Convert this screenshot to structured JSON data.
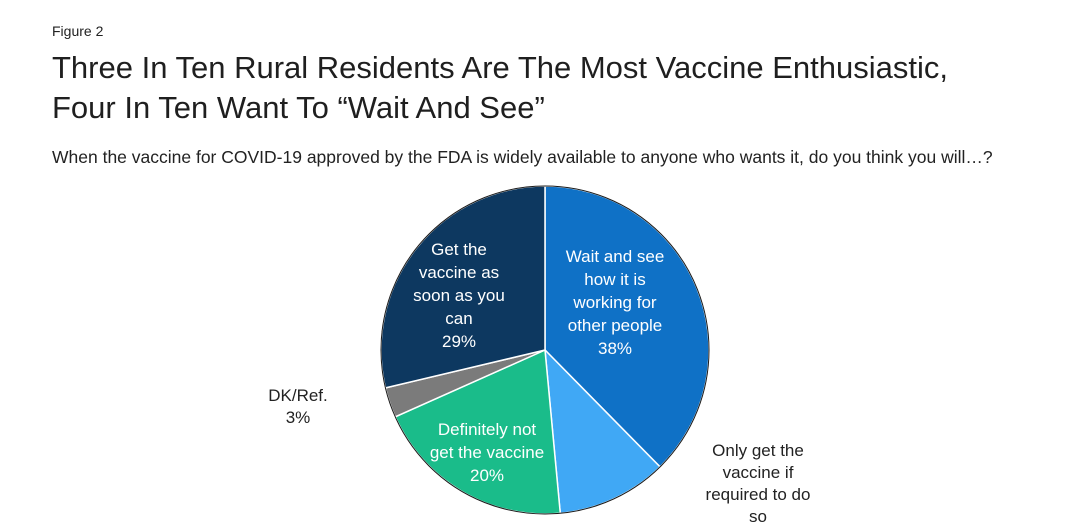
{
  "figure_label": "Figure 2",
  "title_line1": "Three In Ten Rural Residents Are The Most Vaccine Enthusiastic,",
  "title_line2": "Four In Ten Want To “Wait And See”",
  "subtitle": "When the vaccine for COVID-19 approved by the FDA is widely available to anyone who wants it, do you think you will…?",
  "colors": {
    "wait_and_see": "#0f71c6",
    "only_if_required": "#40a8f5",
    "definitely_not": "#1abc8a",
    "dk_ref": "#7b7b7b",
    "as_soon_as_possible": "#0d3860"
  },
  "chart_data": {
    "type": "pie",
    "title": "",
    "slices": [
      {
        "key": "wait_and_see",
        "label": "Wait and see how it is working for other people",
        "value": 38,
        "label_lines": [
          "Wait and see",
          "how it is",
          "working for",
          "other people",
          "38%"
        ]
      },
      {
        "key": "only_if_required",
        "label": "Only get the vaccine if required to do so",
        "value": 11,
        "label_lines": [
          "Only get the",
          "vaccine if",
          "required to do",
          "so"
        ]
      },
      {
        "key": "definitely_not",
        "label": "Definitely not get the vaccine",
        "value": 20,
        "label_lines": [
          "Definitely not",
          "get the vaccine",
          "20%"
        ]
      },
      {
        "key": "dk_ref",
        "label": "DK/Ref.",
        "value": 3,
        "label_lines": [
          "DK/Ref.",
          "3%"
        ]
      },
      {
        "key": "as_soon_as_possible",
        "label": "Get the vaccine as soon as you can",
        "value": 29,
        "label_lines": [
          "Get the",
          "vaccine as",
          "soon as you",
          "can",
          "29%"
        ]
      }
    ],
    "start_angle": "12 o'clock",
    "direction": "clockwise",
    "legend": "none"
  }
}
